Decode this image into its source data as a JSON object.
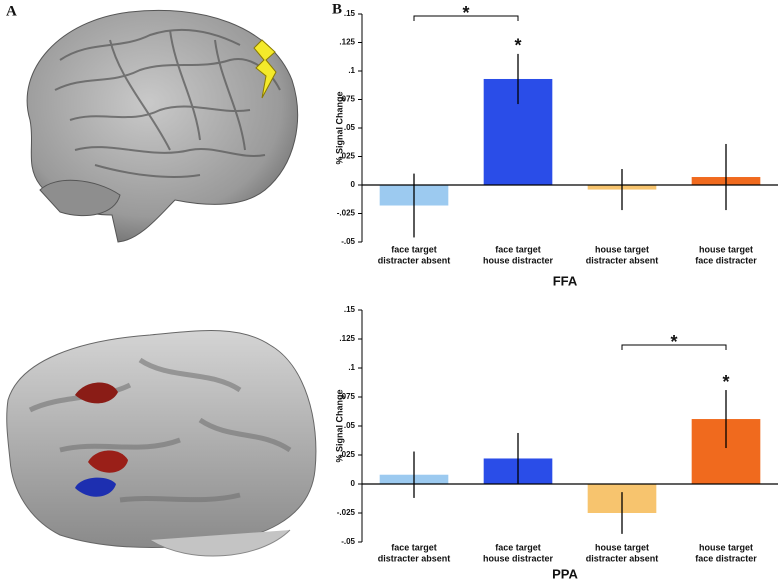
{
  "panel_labels": [
    "A",
    "B"
  ],
  "chart_data": [
    {
      "type": "bar",
      "title": "FFA",
      "y_label": "% Signal Change",
      "categories": [
        [
          "face target",
          "distracter absent"
        ],
        [
          "face target",
          "house distracter"
        ],
        [
          "house target",
          "distracter absent"
        ],
        [
          "house target",
          "face distracter"
        ]
      ],
      "values": [
        -0.018,
        0.093,
        -0.004,
        0.007
      ],
      "errors": [
        0.028,
        0.022,
        0.018,
        0.029
      ],
      "colors": [
        "#9ccaf0",
        "#2a4de8",
        "#f7c46e",
        "#f06a1e"
      ],
      "ylim": [
        -0.05,
        0.15
      ],
      "yticks": [
        {
          "value": -0.05,
          "label": "-.05"
        },
        {
          "value": -0.025,
          "label": "-.025"
        },
        0,
        {
          "value": 0.025,
          "label": ".025"
        },
        {
          "value": 0.05,
          "label": ".05"
        },
        {
          "value": 0.075,
          "label": ".075"
        },
        {
          "value": 0.1,
          "label": ".1"
        },
        {
          "value": 0.125,
          "label": ".125"
        },
        {
          "value": 0.15,
          "label": ".15"
        }
      ],
      "annotations": [
        {
          "text": "*",
          "bracket": [
            0,
            1
          ]
        },
        {
          "text": "*",
          "bar": 1
        }
      ]
    },
    {
      "type": "bar",
      "title": "PPA",
      "y_label": "% Signal Change",
      "categories": [
        [
          "face target",
          "distracter absent"
        ],
        [
          "face target",
          "house distracter"
        ],
        [
          "house target",
          "distracter absent"
        ],
        [
          "house target",
          "face distracter"
        ]
      ],
      "values": [
        0.008,
        0.022,
        -0.025,
        0.056
      ],
      "errors": [
        0.02,
        0.022,
        0.018,
        0.025
      ],
      "colors": [
        "#9ccaf0",
        "#2a4de8",
        "#f7c46e",
        "#f06a1e"
      ],
      "ylim": [
        -0.05,
        0.15
      ],
      "yticks": [
        {
          "value": -0.05,
          "label": "-.05"
        },
        {
          "value": -0.025,
          "label": "-.025"
        },
        0,
        {
          "value": 0.025,
          "label": ".025"
        },
        {
          "value": 0.05,
          "label": ".05"
        },
        {
          "value": 0.075,
          "label": ".075"
        },
        {
          "value": 0.1,
          "label": ".1"
        },
        {
          "value": 0.125,
          "label": ".125"
        },
        {
          "value": 0.15,
          "label": ".15"
        }
      ],
      "annotations": [
        {
          "text": "*",
          "bracket": [
            2,
            3
          ]
        },
        {
          "text": "*",
          "bar": 3
        }
      ]
    }
  ]
}
